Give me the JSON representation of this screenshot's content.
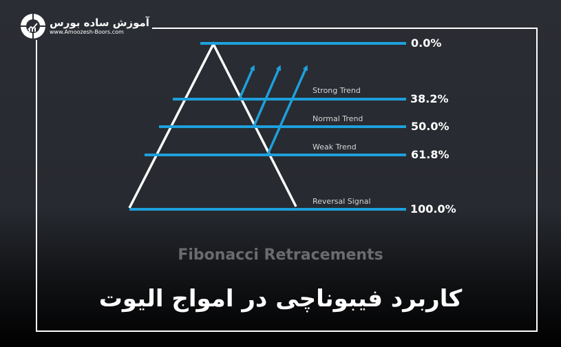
{
  "logo": {
    "name_fa": "آموزش ساده بورس",
    "url": "www.Amoozesh-Boors.com"
  },
  "colors": {
    "level_line": "#1ea0dc",
    "triangle": "#ffffff",
    "arrow": "#1ea0dc"
  },
  "levels": [
    {
      "percent": "0.0%",
      "label": ""
    },
    {
      "percent": "38.2%",
      "label": "Strong Trend"
    },
    {
      "percent": "50.0%",
      "label": "Normal Trend"
    },
    {
      "percent": "61.8%",
      "label": "Weak Trend"
    },
    {
      "percent": "100.0%",
      "label": "Reversal Signal"
    }
  ],
  "subtitle": "Fibonacci Retracements",
  "title": "کاربرد فیبوناچی در امواج الیوت"
}
